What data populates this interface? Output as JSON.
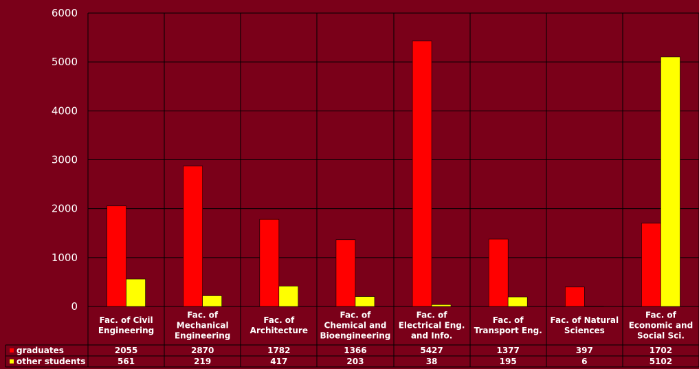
{
  "chart_data": {
    "type": "bar",
    "categories": [
      [
        "Fac. of Civil",
        "Engineering"
      ],
      [
        "Fac. of",
        "Mechanical",
        "Engineering"
      ],
      [
        "Fac. of",
        "Architecture"
      ],
      [
        "Fac. of",
        "Chemical and",
        "Bioengineering"
      ],
      [
        "Fac. of",
        "Electrical Eng.",
        "and Info."
      ],
      [
        "Fac. of",
        "Transport Eng."
      ],
      [
        "Fac. of Natural",
        "Sciences"
      ],
      [
        "Fac. of",
        "Economic and",
        "Social Sci."
      ]
    ],
    "series": [
      {
        "name": "graduates",
        "color": "#ff0000",
        "values": [
          2055,
          2870,
          1782,
          1366,
          5427,
          1377,
          397,
          1702
        ]
      },
      {
        "name": "other students",
        "color": "#ffff00",
        "values": [
          561,
          219,
          417,
          203,
          38,
          195,
          6,
          5102
        ]
      }
    ],
    "ylim": [
      0,
      6000
    ],
    "yticks": [
      0,
      1000,
      2000,
      3000,
      4000,
      5000,
      6000
    ],
    "grid": true,
    "legend": "data-table"
  },
  "colors": {
    "background": "#7a0019",
    "grid": "#000000",
    "text": "#ffffff"
  }
}
